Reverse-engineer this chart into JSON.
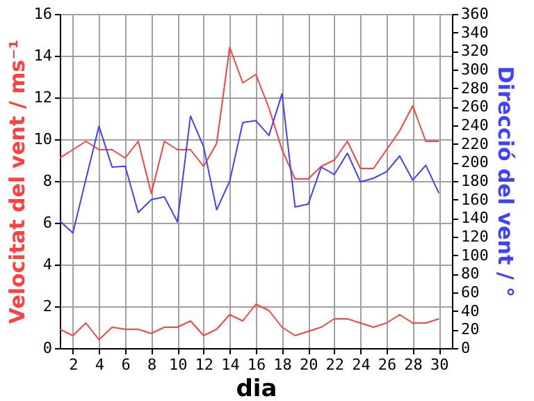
{
  "chart_data": {
    "type": "line",
    "xlabel": "dia",
    "ylabel": "Velocitat del vent / ms⁻¹",
    "y2label": "Direcció del vent / °",
    "x": [
      1,
      2,
      3,
      4,
      5,
      6,
      7,
      8,
      9,
      10,
      11,
      12,
      13,
      14,
      15,
      16,
      17,
      18,
      19,
      20,
      21,
      22,
      23,
      24,
      25,
      26,
      27,
      28,
      29,
      30
    ],
    "series": [
      {
        "color": "#ff4040",
        "values": [
          9.1,
          9.5,
          9.9,
          9.5,
          9.5,
          9.1,
          9.9,
          7.4,
          9.9,
          9.5,
          9.5,
          8.7,
          9.8,
          14.4,
          12.7,
          13.1,
          11.5,
          9.5,
          8.1,
          8.1,
          8.7,
          9.0,
          9.9,
          8.6,
          8.6,
          9.5,
          10.4,
          11.6,
          9.9,
          9.9
        ]
      },
      {
        "color": "#ff4040",
        "values": [
          0.9,
          0.6,
          1.2,
          0.4,
          1.0,
          0.9,
          0.9,
          0.7,
          1.0,
          1.0,
          1.3,
          0.6,
          0.9,
          1.6,
          1.3,
          2.1,
          1.8,
          1.0,
          0.6,
          0.8,
          1.0,
          1.4,
          1.4,
          1.2,
          1.0,
          1.2,
          1.6,
          1.2,
          1.2,
          1.4
        ]
      },
      {
        "color": "#4040ff",
        "axis": "y2",
        "values": [
          137,
          124,
          182,
          239,
          195,
          196,
          146,
          160,
          163,
          136,
          250,
          217,
          149,
          180,
          243,
          245,
          229,
          274,
          152,
          155,
          195,
          187,
          210,
          179,
          183,
          190,
          207,
          181,
          197,
          167
        ]
      }
    ],
    "xlim": [
      1,
      31
    ],
    "xticks": [
      2,
      4,
      6,
      8,
      10,
      12,
      14,
      16,
      18,
      20,
      22,
      24,
      26,
      28,
      30
    ],
    "ylim": [
      0,
      16
    ],
    "yticks": [
      0,
      2,
      4,
      6,
      8,
      10,
      12,
      14,
      16
    ],
    "y2lim": [
      0,
      360
    ],
    "y2ticks": [
      0,
      20,
      40,
      60,
      80,
      100,
      120,
      140,
      160,
      180,
      200,
      220,
      240,
      260,
      280,
      300,
      320,
      340,
      360
    ],
    "grid": true
  }
}
